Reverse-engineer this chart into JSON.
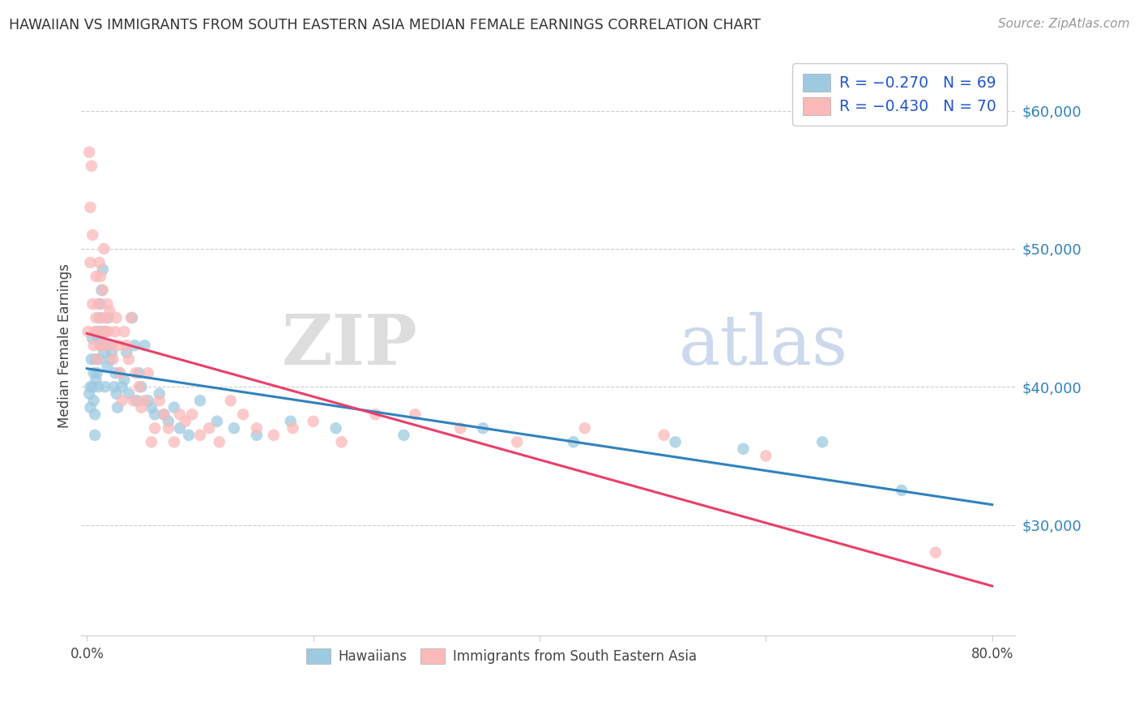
{
  "title": "HAWAIIAN VS IMMIGRANTS FROM SOUTH EASTERN ASIA MEDIAN FEMALE EARNINGS CORRELATION CHART",
  "source": "Source: ZipAtlas.com",
  "ylabel": "Median Female Earnings",
  "yticks": [
    30000,
    40000,
    50000,
    60000
  ],
  "ytick_labels": [
    "$30,000",
    "$40,000",
    "$50,000",
    "$60,000"
  ],
  "ymin": 22000,
  "ymax": 64000,
  "xmin": -0.005,
  "xmax": 0.82,
  "hawaiian_color": "#9ecae1",
  "sea_color": "#fcb9b9",
  "hawaiian_line_color": "#3182bd",
  "sea_line_color": "#e8406a",
  "legend_text_color": "#2255cc",
  "hawaiian_x": [
    0.002,
    0.003,
    0.003,
    0.004,
    0.005,
    0.005,
    0.006,
    0.006,
    0.007,
    0.007,
    0.008,
    0.008,
    0.009,
    0.009,
    0.01,
    0.01,
    0.011,
    0.011,
    0.012,
    0.012,
    0.013,
    0.013,
    0.014,
    0.015,
    0.016,
    0.016,
    0.017,
    0.018,
    0.019,
    0.02,
    0.021,
    0.022,
    0.024,
    0.025,
    0.026,
    0.027,
    0.029,
    0.031,
    0.033,
    0.035,
    0.037,
    0.04,
    0.042,
    0.044,
    0.046,
    0.048,
    0.051,
    0.054,
    0.057,
    0.06,
    0.064,
    0.068,
    0.072,
    0.077,
    0.082,
    0.09,
    0.1,
    0.115,
    0.13,
    0.15,
    0.18,
    0.22,
    0.28,
    0.35,
    0.43,
    0.52,
    0.58,
    0.65,
    0.72
  ],
  "hawaiian_y": [
    39500,
    40000,
    38500,
    42000,
    40000,
    43500,
    41000,
    39000,
    38000,
    36500,
    42000,
    40500,
    44000,
    41000,
    43500,
    40000,
    45000,
    42000,
    46000,
    43000,
    47000,
    44000,
    48500,
    42500,
    44000,
    40000,
    43000,
    41500,
    45000,
    43000,
    42000,
    42500,
    40000,
    41000,
    39500,
    38500,
    41000,
    40000,
    40500,
    42500,
    39500,
    45000,
    43000,
    39000,
    41000,
    40000,
    43000,
    39000,
    38500,
    38000,
    39500,
    38000,
    37500,
    38500,
    37000,
    36500,
    39000,
    37500,
    37000,
    36500,
    37500,
    37000,
    36500,
    37000,
    36000,
    36000,
    35500,
    36000,
    32500
  ],
  "sea_x": [
    0.001,
    0.002,
    0.003,
    0.003,
    0.004,
    0.005,
    0.005,
    0.006,
    0.007,
    0.008,
    0.008,
    0.009,
    0.01,
    0.01,
    0.011,
    0.012,
    0.012,
    0.013,
    0.014,
    0.015,
    0.015,
    0.016,
    0.017,
    0.018,
    0.019,
    0.02,
    0.022,
    0.023,
    0.025,
    0.026,
    0.028,
    0.029,
    0.031,
    0.033,
    0.035,
    0.037,
    0.039,
    0.041,
    0.043,
    0.046,
    0.048,
    0.051,
    0.054,
    0.057,
    0.06,
    0.064,
    0.068,
    0.072,
    0.077,
    0.082,
    0.087,
    0.093,
    0.1,
    0.108,
    0.117,
    0.127,
    0.138,
    0.15,
    0.165,
    0.182,
    0.2,
    0.225,
    0.255,
    0.29,
    0.33,
    0.38,
    0.44,
    0.51,
    0.6,
    0.75
  ],
  "sea_y": [
    44000,
    57000,
    49000,
    53000,
    56000,
    46000,
    51000,
    43000,
    44000,
    45000,
    48000,
    42000,
    44000,
    46000,
    49000,
    43000,
    48000,
    45000,
    47000,
    43000,
    50000,
    44000,
    45000,
    46000,
    44000,
    45500,
    43000,
    42000,
    44000,
    45000,
    43000,
    41000,
    39000,
    44000,
    43000,
    42000,
    45000,
    39000,
    41000,
    40000,
    38500,
    39000,
    41000,
    36000,
    37000,
    39000,
    38000,
    37000,
    36000,
    38000,
    37500,
    38000,
    36500,
    37000,
    36000,
    39000,
    38000,
    37000,
    36500,
    37000,
    37500,
    36000,
    38000,
    38000,
    37000,
    36000,
    37000,
    36500,
    35000,
    28000
  ]
}
